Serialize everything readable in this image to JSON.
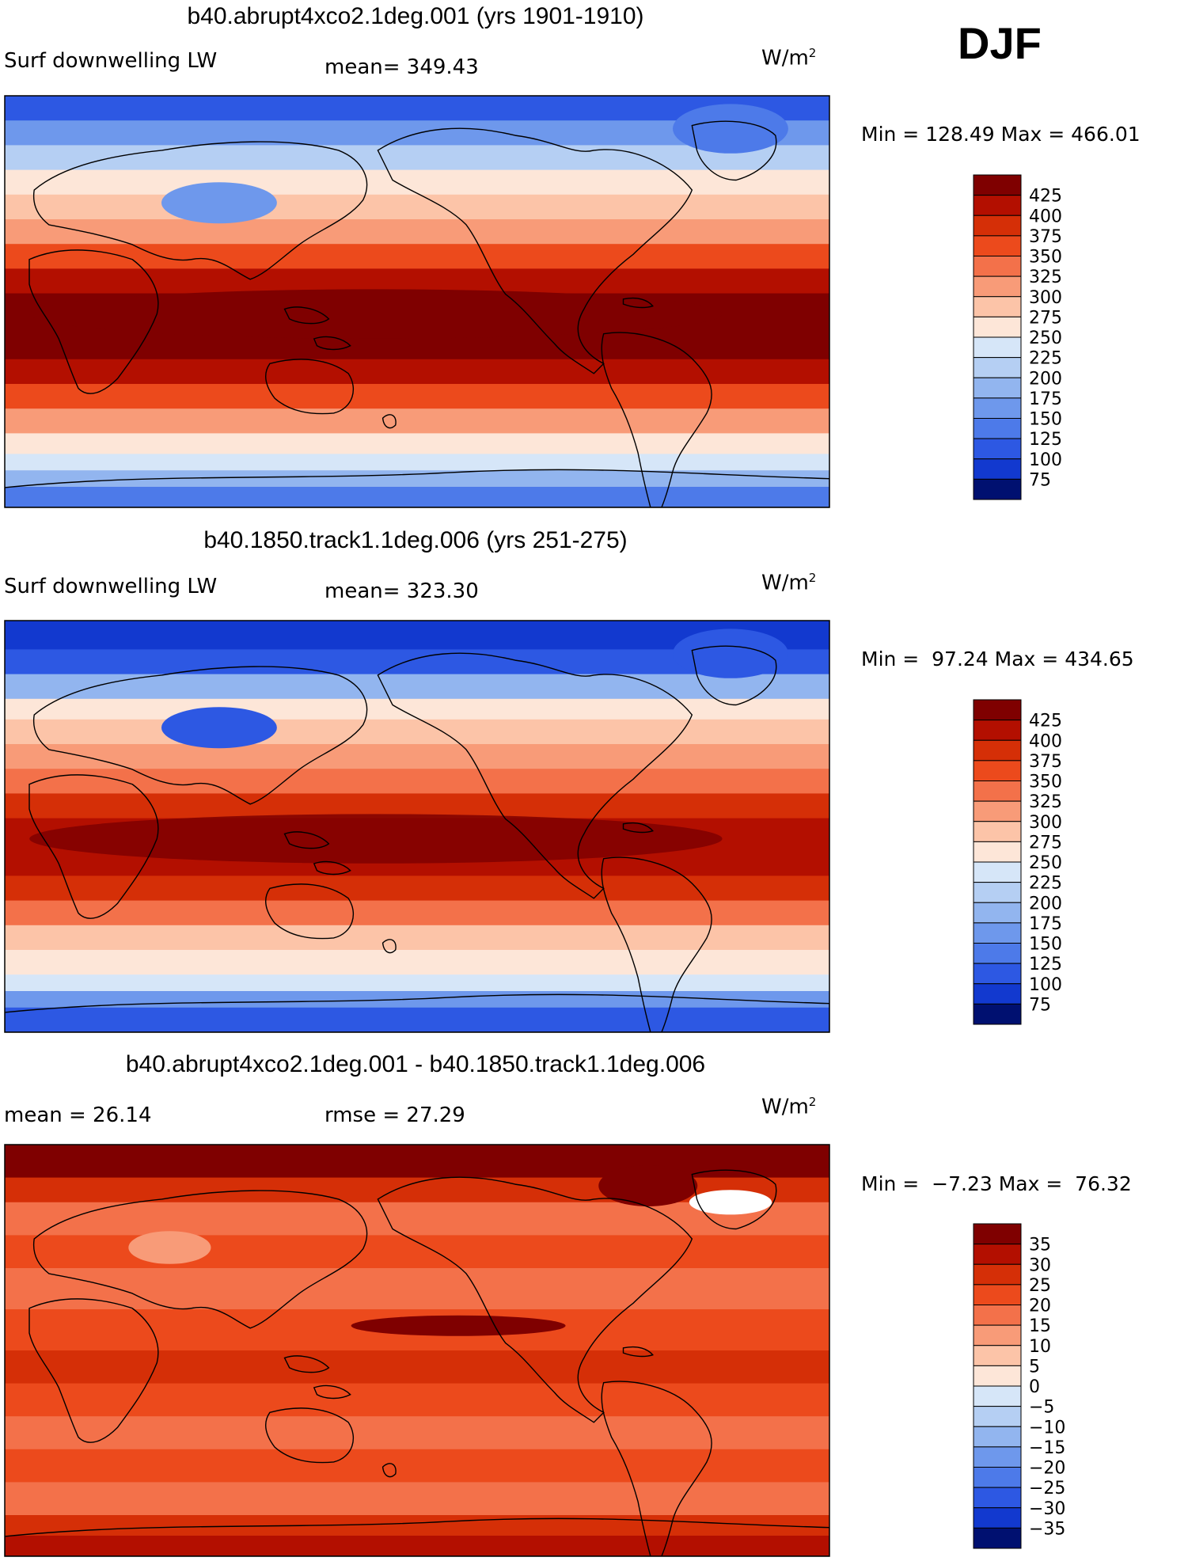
{
  "season": "DJF",
  "colors": {
    "red_levels": [
      "#7f0000",
      "#b30f00",
      "#d52f07",
      "#ec4a1c",
      "#f3714a",
      "#f89b78",
      "#fcc4a8",
      "#fde6d8"
    ],
    "blue_levels": [
      "#d6e6f8",
      "#b5cff3",
      "#92b5ef",
      "#6e98ec",
      "#4d7ae9",
      "#2d58e3",
      "#1239cf",
      "#05209f",
      "#001070"
    ],
    "coast": "#000000"
  },
  "panels": [
    {
      "title": "b40.abrupt4xco2.1deg.001 (yrs 1901-1910)",
      "left_label": "Surf downwelling LW",
      "center_label": "mean= 349.43",
      "units_base": "W/m",
      "units_exp": "2",
      "min_max": "Min = 128.49 Max = 466.01"
    },
    {
      "title": "b40.1850.track1.1deg.006 (yrs 251-275)",
      "left_label": "Surf downwelling LW",
      "center_label": "mean= 323.30",
      "units_base": "W/m",
      "units_exp": "2",
      "min_max": "Min =  97.24 Max = 434.65"
    },
    {
      "title": "b40.abrupt4xco2.1deg.001 - b40.1850.track1.1deg.006",
      "left_label": "mean =  26.14",
      "center_label": "rmse =  27.29",
      "units_base": "W/m",
      "units_exp": "2",
      "min_max": "Min =  −7.23 Max =  76.32"
    }
  ],
  "chart_data": [
    {
      "type": "heatmap",
      "title": "b40.abrupt4xco2.1deg.001 (yrs 1901-1910)",
      "variable": "Surf downwelling LW",
      "units": "W/m2",
      "mean": 349.43,
      "min": 128.49,
      "max": 466.01,
      "colorbar_levels": [
        425,
        400,
        375,
        350,
        325,
        300,
        275,
        250,
        225,
        200,
        175,
        150,
        125,
        100,
        75
      ],
      "colorbar_labels": [
        "425",
        "400",
        "375",
        "350",
        "325",
        "300",
        "275",
        "250",
        "225",
        "200",
        "175",
        "150",
        "125",
        "100",
        "75"
      ]
    },
    {
      "type": "heatmap",
      "title": "b40.1850.track1.1deg.006 (yrs 251-275)",
      "variable": "Surf downwelling LW",
      "units": "W/m2",
      "mean": 323.3,
      "min": 97.24,
      "max": 434.65,
      "colorbar_levels": [
        425,
        400,
        375,
        350,
        325,
        300,
        275,
        250,
        225,
        200,
        175,
        150,
        125,
        100,
        75
      ],
      "colorbar_labels": [
        "425",
        "400",
        "375",
        "350",
        "325",
        "300",
        "275",
        "250",
        "225",
        "200",
        "175",
        "150",
        "125",
        "100",
        "75"
      ]
    },
    {
      "type": "heatmap",
      "title": "b40.abrupt4xco2.1deg.001 - b40.1850.track1.1deg.006",
      "units": "W/m2",
      "mean": 26.14,
      "rmse": 27.29,
      "min": -7.23,
      "max": 76.32,
      "colorbar_levels": [
        35,
        30,
        25,
        20,
        15,
        10,
        5,
        0,
        -5,
        -10,
        -15,
        -20,
        -25,
        -30,
        -35
      ],
      "colorbar_labels": [
        "35",
        "30",
        "25",
        "20",
        "15",
        "10",
        "5",
        "0",
        "−5",
        "−10",
        "−15",
        "−20",
        "−25",
        "−30",
        "−35"
      ]
    }
  ]
}
